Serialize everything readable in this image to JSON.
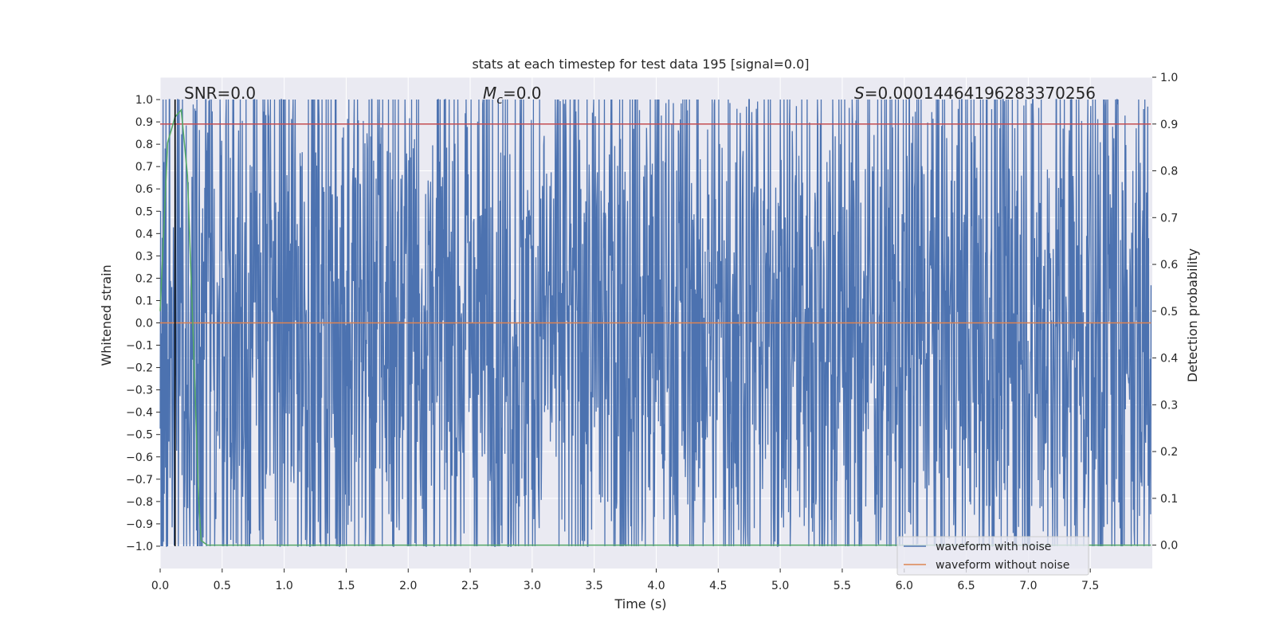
{
  "chart_data": {
    "type": "line",
    "title": "stats at each timestep for test data 195 [signal=0.0]",
    "xlabel": "Time (s)",
    "ylabel": "Whitened strain",
    "y2label": "Detection probability",
    "xlim": [
      0.0,
      8.0
    ],
    "ylim": [
      -1.1,
      1.1
    ],
    "y2lim": [
      -0.05,
      1.0
    ],
    "xticks": [
      0.0,
      0.5,
      1.0,
      1.5,
      2.0,
      2.5,
      3.0,
      3.5,
      4.0,
      4.5,
      5.0,
      5.5,
      6.0,
      6.5,
      7.0,
      7.5
    ],
    "yticks": [
      -1.0,
      -0.9,
      -0.8,
      -0.7,
      -0.6,
      -0.5,
      -0.4,
      -0.3,
      -0.2,
      -0.1,
      0.0,
      0.1,
      0.2,
      0.3,
      0.4,
      0.5,
      0.6,
      0.7,
      0.8,
      0.9,
      1.0
    ],
    "y2ticks": [
      0.0,
      0.1,
      0.2,
      0.3,
      0.4,
      0.5,
      0.6,
      0.7,
      0.8,
      0.9,
      1.0
    ],
    "grid": true,
    "legend_position": "lower-right",
    "colors": {
      "noise": "#4c72b0",
      "clean": "#dd8452",
      "prob": "#55a868",
      "threshold": "#c44e52",
      "marker": "#000000",
      "axes_bg": "#eaeaf2",
      "grid": "#ffffff"
    },
    "annotations": {
      "snr": "SNR=0.0",
      "mc_symbol": "M",
      "mc_sub": "c",
      "mc_value": "=0.0",
      "s_symbol": "S",
      "s_value": "=0.00014464196283370256"
    },
    "series": [
      {
        "name": "waveform with noise",
        "description_of_values": "dense noise clipped to [-1, 1]",
        "clip": [
          -1.0,
          1.0
        ]
      },
      {
        "name": "waveform without noise",
        "x": [
          0.0,
          7.99
        ],
        "y": [
          0.0,
          0.0
        ]
      },
      {
        "axis": "right",
        "x": [
          0.0,
          0.06,
          0.12,
          0.17,
          0.22,
          0.27,
          0.31,
          0.33,
          0.38,
          7.99
        ],
        "y": [
          0.5,
          0.86,
          0.915,
          0.93,
          0.79,
          0.42,
          0.1,
          0.01,
          0.0,
          0.0
        ]
      },
      {
        "axis": "right",
        "x": [
          0.0,
          7.99
        ],
        "y": [
          0.9,
          0.9
        ]
      }
    ],
    "vlines": [
      0.12
    ],
    "legend": [
      "waveform with noise",
      "waveform without noise"
    ]
  }
}
